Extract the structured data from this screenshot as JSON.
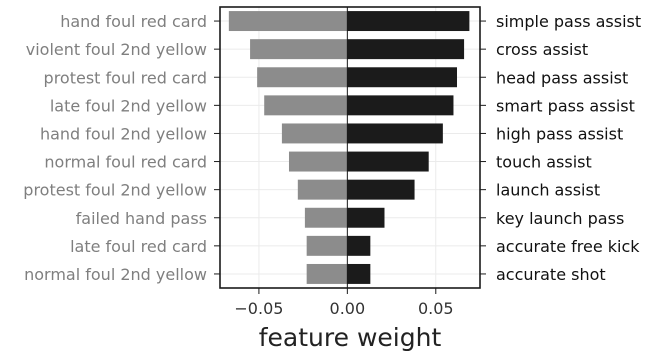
{
  "chart_data": {
    "type": "bar",
    "orientation": "horizontal-diverging",
    "xlabel": "feature weight",
    "xlim": [
      -0.072,
      0.075
    ],
    "xticks": [
      -0.05,
      0.0,
      0.05
    ],
    "xtick_labels": [
      "−0.05",
      "0.00",
      "0.05"
    ],
    "grid": true,
    "series": [
      {
        "name": "negative",
        "color": "#8c8c8c",
        "label_color": "#7f7f7f",
        "axis_side": "left",
        "labels": [
          "hand foul red card",
          "violent foul 2nd yellow",
          "protest foul red card",
          "late foul 2nd yellow",
          "hand foul 2nd yellow",
          "normal foul red card",
          "protest foul 2nd yellow",
          "failed hand pass",
          "late foul red card",
          "normal foul 2nd yellow"
        ],
        "values": [
          -0.067,
          -0.055,
          -0.051,
          -0.047,
          -0.037,
          -0.033,
          -0.028,
          -0.024,
          -0.023,
          -0.023
        ]
      },
      {
        "name": "positive",
        "color": "#1b1b1b",
        "label_color": "#111111",
        "axis_side": "right",
        "labels": [
          "simple pass assist",
          "cross assist",
          "head pass assist",
          "smart pass assist",
          "high pass assist",
          "touch assist",
          "launch assist",
          "key launch pass",
          "accurate free kick",
          "accurate shot"
        ],
        "values": [
          0.069,
          0.066,
          0.062,
          0.06,
          0.054,
          0.046,
          0.038,
          0.021,
          0.013,
          0.013
        ]
      }
    ]
  }
}
